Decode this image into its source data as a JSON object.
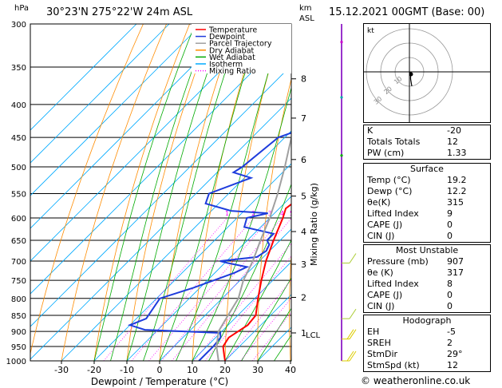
{
  "header": {
    "pressure_unit": "hPa",
    "location": "30°23'N  275°22'W  24m  ASL",
    "height_unit": "km",
    "height_unit2": "ASL",
    "datetime": "15.12.2021  00GMT  (Base: 00)"
  },
  "footer": "© weatheronline.co.uk",
  "colors": {
    "temperature": "#ff0000",
    "dewpoint": "#1e3cdc",
    "parcel": "#a0a0a0",
    "dry_adiabat": "#ff8c00",
    "wet_adiabat": "#00aa00",
    "isotherm": "#00aaff",
    "mixing_ratio": "#ff00ff"
  },
  "chart_data": {
    "type": "line",
    "xlabel": "Dewpoint / Temperature (°C)",
    "ylabel_right": "Mixing Ratio (g/kg)",
    "x_ticks": [
      -30,
      -20,
      -10,
      0,
      10,
      20,
      30,
      40
    ],
    "pressure_levels": [
      300,
      350,
      400,
      450,
      500,
      550,
      600,
      650,
      700,
      750,
      800,
      850,
      900,
      950,
      1000
    ],
    "km_ticks": [
      {
        "label": "8",
        "p": 365
      },
      {
        "label": "7",
        "p": 420
      },
      {
        "label": "6",
        "p": 487
      },
      {
        "label": "5",
        "p": 555
      },
      {
        "label": "4",
        "p": 630
      },
      {
        "label": "3",
        "p": 708
      },
      {
        "label": "2",
        "p": 797
      },
      {
        "label": "1",
        "p": 905
      }
    ],
    "lcl_label": "LCL",
    "lcl_p": 910,
    "mixing_ratio_labels": [
      "1",
      "2",
      "3",
      "4",
      "5",
      "8",
      "10",
      "15",
      "20",
      "25"
    ],
    "legend": [
      "Temperature",
      "Dewpoint",
      "Parcel Trajectory",
      "Dry Adiabat",
      "Wet Adiabat",
      "Isotherm",
      "Mixing Ratio"
    ],
    "series": [
      {
        "name": "Temperature",
        "points": [
          [
            1000,
            20
          ],
          [
            980,
            18
          ],
          [
            950,
            15
          ],
          [
            920,
            14
          ],
          [
            900,
            15
          ],
          [
            880,
            16
          ],
          [
            850,
            15.5
          ],
          [
            800,
            11
          ],
          [
            750,
            6.5
          ],
          [
            700,
            2
          ],
          [
            650,
            -2
          ],
          [
            600,
            -6
          ],
          [
            580,
            -8
          ],
          [
            560,
            -7
          ],
          [
            550,
            -9
          ],
          [
            500,
            -14
          ],
          [
            450,
            -19
          ],
          [
            400,
            -25
          ],
          [
            370,
            -30
          ],
          [
            350,
            -32
          ],
          [
            320,
            -39
          ],
          [
            300,
            -44
          ]
        ]
      },
      {
        "name": "Dewpoint",
        "points": [
          [
            1000,
            12
          ],
          [
            950,
            12
          ],
          [
            920,
            11.5
          ],
          [
            905,
            10
          ],
          [
            895,
            -14
          ],
          [
            880,
            -20
          ],
          [
            860,
            -17
          ],
          [
            800,
            -19
          ],
          [
            770,
            -12
          ],
          [
            730,
            -4
          ],
          [
            715,
            -2
          ],
          [
            705,
            -9
          ],
          [
            700,
            -12
          ],
          [
            690,
            -2
          ],
          [
            675,
            -1
          ],
          [
            660,
            -2
          ],
          [
            650,
            -4
          ],
          [
            635,
            -4
          ],
          [
            620,
            -15
          ],
          [
            600,
            -17
          ],
          [
            590,
            -12
          ],
          [
            585,
            -24
          ],
          [
            570,
            -34
          ],
          [
            550,
            -36
          ],
          [
            520,
            -28
          ],
          [
            510,
            -35
          ],
          [
            500,
            -34
          ],
          [
            450,
            -32
          ],
          [
            420,
            -21
          ],
          [
            400,
            -16
          ],
          [
            390,
            -26
          ],
          [
            370,
            -42
          ],
          [
            350,
            -40
          ],
          [
            300,
            -42
          ]
        ]
      },
      {
        "name": "Parcel Trajectory",
        "points": [
          [
            1000,
            18
          ],
          [
            950,
            13
          ],
          [
            900,
            9
          ],
          [
            850,
            7
          ],
          [
            800,
            5
          ],
          [
            750,
            1
          ],
          [
            700,
            -2
          ],
          [
            650,
            -6
          ],
          [
            600,
            -10
          ],
          [
            550,
            -15
          ],
          [
            500,
            -21
          ],
          [
            450,
            -28
          ],
          [
            400,
            -35
          ],
          [
            350,
            -43
          ],
          [
            300,
            -53
          ]
        ]
      }
    ],
    "hodograph": {
      "label": "kt",
      "ring_labels": [
        "10",
        "20",
        "30"
      ],
      "points": [
        [
          0,
          0
        ],
        [
          1,
          -2
        ],
        [
          1,
          -6
        ],
        [
          2,
          -12
        ]
      ]
    }
  },
  "indices": {
    "rows": [
      {
        "label": "K",
        "value": "-20"
      },
      {
        "label": "Totals Totals",
        "value": "12"
      },
      {
        "label": "PW (cm)",
        "value": "1.33"
      }
    ],
    "surface": {
      "title": "Surface",
      "rows": [
        {
          "label": "Temp (°C)",
          "value": "19.2"
        },
        {
          "label": "Dewp (°C)",
          "value": "12.2"
        },
        {
          "label": "θe(K)",
          "value": "315"
        },
        {
          "label": "Lifted Index",
          "value": "9"
        },
        {
          "label": "CAPE (J)",
          "value": "0"
        },
        {
          "label": "CIN (J)",
          "value": "0"
        }
      ]
    },
    "most_unstable": {
      "title": "Most Unstable",
      "rows": [
        {
          "label": "Pressure (mb)",
          "value": "907"
        },
        {
          "label": "θe (K)",
          "value": "317"
        },
        {
          "label": "Lifted Index",
          "value": "8"
        },
        {
          "label": "CAPE (J)",
          "value": "0"
        },
        {
          "label": "CIN (J)",
          "value": "0"
        }
      ]
    },
    "hodograph": {
      "title": "Hodograph",
      "rows": [
        {
          "label": "EH",
          "value": "-5"
        },
        {
          "label": "SREH",
          "value": "2"
        },
        {
          "label": "StmDir",
          "value": "29°"
        },
        {
          "label": "StmSpd (kt)",
          "value": "12"
        }
      ]
    }
  }
}
